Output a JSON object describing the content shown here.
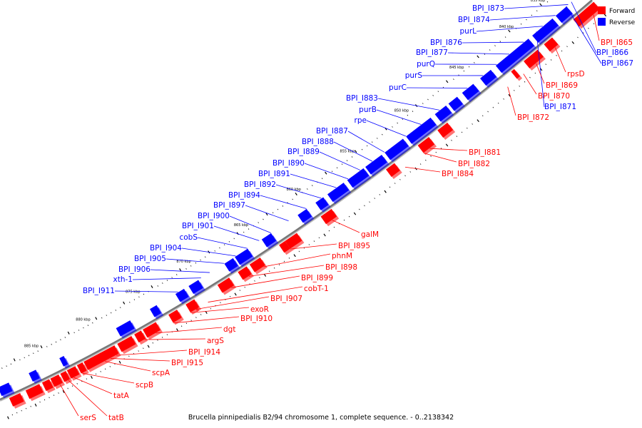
{
  "legend": [
    {
      "label": "Forward",
      "color": "#ff0000"
    },
    {
      "label": "Reverse",
      "color": "#0000ff"
    }
  ],
  "caption": "Brucella pinnipedialis B2/94 chromosome 1, complete sequence. - 0..2138342",
  "colors": {
    "forward": "#ff0000",
    "reverse": "#0000ff",
    "backbone": "#777777",
    "leader": "#333333"
  },
  "ticks": [
    "835 kbp",
    "840 kbp",
    "845 kbp",
    "850 kbp",
    "855 kbp",
    "860 kbp",
    "865 kbp",
    "870 kbp",
    "875 kbp",
    "880 kbp",
    "885 kbp"
  ],
  "reverse_labels": [
    "BPI_I873",
    "BPI_I874",
    "purL",
    "BPI_I876",
    "BPI_I877",
    "purQ",
    "purS",
    "purC",
    "BPI_I883",
    "purB",
    "rpe",
    "BPI_I887",
    "BPI_I888",
    "BPI_I889",
    "BPI_I890",
    "BPI_I891",
    "BPI_I892",
    "BPI_I894",
    "BPI_I897",
    "BPI_I900",
    "BPI_I901",
    "cobS",
    "BPI_I904",
    "BPI_I905",
    "BPI_I906",
    "xth-1",
    "BPI_I911",
    "BPI_I866",
    "BPI_I867",
    "BPI_I871"
  ],
  "forward_labels": [
    "BPI_I865",
    "rpsD",
    "BPI_I869",
    "BPI_I870",
    "BPI_I872",
    "BPI_I881",
    "BPI_I882",
    "BPI_I884",
    "galM",
    "BPI_I895",
    "phnM",
    "BPI_I898",
    "BPI_I899",
    "cobT-1",
    "BPI_I907",
    "exoR",
    "BPI_I910",
    "dgt",
    "argS",
    "BPI_I914",
    "BPI_I915",
    "scpA",
    "scpB",
    "tatA",
    "tatB",
    "serS"
  ]
}
